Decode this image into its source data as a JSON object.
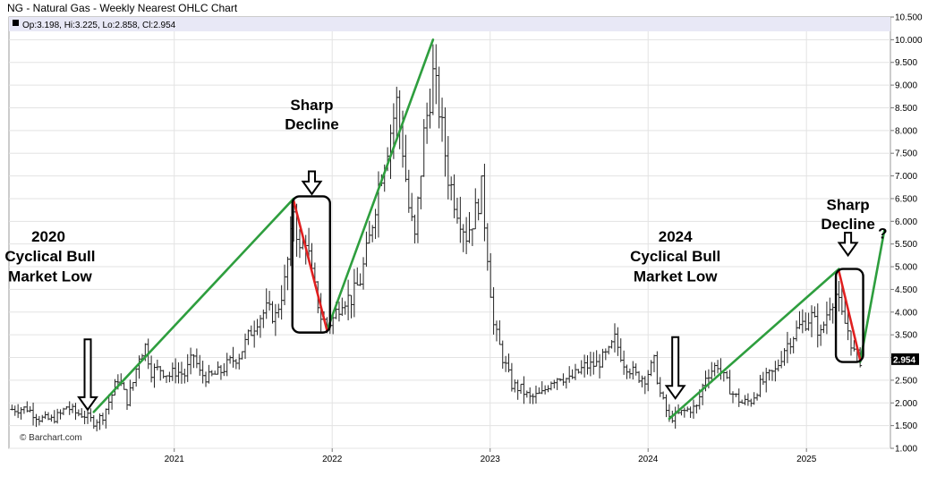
{
  "chart_data": {
    "type": "line",
    "title": "NG - Natural Gas - Weekly Nearest OHLC Chart",
    "ohlc_info": "Op:3.198, Hi:3.225, Lo:2.858, Cl:2.954",
    "last_price": "2.954",
    "watermark": "© Barchart.com",
    "ylim": [
      1.0,
      10.5
    ],
    "y_ticks": [
      "1.000",
      "1.500",
      "2.000",
      "2.500",
      "3.000",
      "3.500",
      "4.000",
      "4.500",
      "5.000",
      "5.500",
      "6.000",
      "6.500",
      "7.000",
      "7.500",
      "8.000",
      "8.500",
      "9.000",
      "9.500",
      "10.000",
      "10.500"
    ],
    "x_ticks": [
      "2021",
      "2022",
      "2023",
      "2024",
      "2025"
    ],
    "grid": true,
    "series": [
      {
        "values": [
          [
            "2019-12-23",
            1.86
          ],
          [
            "2020-01-27",
            1.88
          ],
          [
            "2020-02-24",
            1.66
          ],
          [
            "2020-03-23",
            1.63
          ],
          [
            "2020-04-13",
            1.75
          ],
          [
            "2020-04-27",
            1.92
          ],
          [
            "2020-05-18",
            1.78
          ],
          [
            "2020-06-08",
            1.73
          ],
          [
            "2020-06-29",
            1.58
          ],
          [
            "2020-07-20",
            1.72
          ],
          [
            "2020-08-10",
            2.18
          ],
          [
            "2020-08-24",
            2.55
          ],
          [
            "2020-09-14",
            2.05
          ],
          [
            "2020-09-28",
            2.45
          ],
          [
            "2020-10-12",
            3.05
          ],
          [
            "2020-10-26",
            3.25
          ],
          [
            "2020-11-09",
            2.7
          ],
          [
            "2020-11-30",
            2.75
          ],
          [
            "2020-12-21",
            2.6
          ],
          [
            "2021-01-04",
            2.7
          ],
          [
            "2021-01-25",
            2.62
          ],
          [
            "2021-02-15",
            3.05
          ],
          [
            "2021-03-01",
            2.65
          ],
          [
            "2021-03-22",
            2.55
          ],
          [
            "2021-04-19",
            2.7
          ],
          [
            "2021-05-10",
            2.9
          ],
          [
            "2021-05-31",
            3.05
          ],
          [
            "2021-06-21",
            3.45
          ],
          [
            "2021-07-12",
            3.85
          ],
          [
            "2021-08-02",
            4.05
          ],
          [
            "2021-08-23",
            3.9
          ],
          [
            "2021-09-13",
            4.65
          ],
          [
            "2021-09-27",
            5.6
          ],
          [
            "2021-10-04",
            6.3
          ],
          [
            "2021-10-18",
            5.3
          ],
          [
            "2021-11-01",
            5.65
          ],
          [
            "2021-11-15",
            4.8
          ],
          [
            "2021-12-06",
            3.9
          ],
          [
            "2021-12-20",
            3.7
          ],
          [
            "2022-01-03",
            3.85
          ],
          [
            "2022-01-24",
            4.3
          ],
          [
            "2022-02-14",
            4.3
          ],
          [
            "2022-03-07",
            4.7
          ],
          [
            "2022-03-28",
            5.6
          ],
          [
            "2022-04-18",
            6.8
          ],
          [
            "2022-05-09",
            7.7
          ],
          [
            "2022-05-30",
            8.6
          ],
          [
            "2022-06-13",
            7.6
          ],
          [
            "2022-06-27",
            6.3
          ],
          [
            "2022-07-11",
            5.6
          ],
          [
            "2022-08-01",
            7.9
          ],
          [
            "2022-08-22",
            9.2
          ],
          [
            "2022-09-05",
            8.5
          ],
          [
            "2022-09-26",
            7.0
          ],
          [
            "2022-10-10",
            6.5
          ],
          [
            "2022-11-07",
            5.7
          ],
          [
            "2022-11-28",
            6.2
          ],
          [
            "2022-12-12",
            6.7
          ],
          [
            "2022-12-26",
            5.3
          ],
          [
            "2023-01-09",
            3.7
          ],
          [
            "2023-01-30",
            3.0
          ],
          [
            "2023-02-20",
            2.4
          ],
          [
            "2023-03-13",
            2.3
          ],
          [
            "2023-04-03",
            2.1
          ],
          [
            "2023-05-01",
            2.2
          ],
          [
            "2023-05-22",
            2.5
          ],
          [
            "2023-06-12",
            2.6
          ],
          [
            "2023-07-03",
            2.5
          ],
          [
            "2023-08-07",
            2.8
          ],
          [
            "2023-09-04",
            2.85
          ],
          [
            "2023-10-02",
            3.1
          ],
          [
            "2023-10-16",
            3.4
          ],
          [
            "2023-11-06",
            2.9
          ],
          [
            "2023-12-04",
            2.6
          ],
          [
            "2023-12-25",
            2.55
          ],
          [
            "2024-01-15",
            2.9
          ],
          [
            "2024-01-29",
            2.2
          ],
          [
            "2024-02-19",
            1.65
          ],
          [
            "2024-03-11",
            1.75
          ],
          [
            "2024-04-01",
            1.85
          ],
          [
            "2024-04-22",
            1.9
          ],
          [
            "2024-05-13",
            2.6
          ],
          [
            "2024-06-10",
            2.85
          ],
          [
            "2024-06-24",
            2.55
          ],
          [
            "2024-07-15",
            2.2
          ],
          [
            "2024-08-05",
            2.0
          ],
          [
            "2024-08-26",
            2.05
          ],
          [
            "2024-09-16",
            2.4
          ],
          [
            "2024-10-07",
            2.6
          ],
          [
            "2024-10-21",
            2.7
          ],
          [
            "2024-11-11",
            3.2
          ],
          [
            "2024-12-09",
            3.6
          ],
          [
            "2024-12-23",
            3.75
          ],
          [
            "2025-01-13",
            3.9
          ],
          [
            "2025-02-03",
            3.5
          ],
          [
            "2025-02-24",
            4.2
          ],
          [
            "2025-03-10",
            4.4
          ],
          [
            "2025-03-24",
            3.9
          ],
          [
            "2025-04-07",
            3.6
          ],
          [
            "2025-04-21",
            3.1
          ],
          [
            "2025-05-05",
            2.95
          ]
        ],
        "color": "#000000"
      }
    ],
    "annotations": {
      "trend_lines": [
        {
          "from": [
            "2020-06-29",
            1.8
          ],
          "to": [
            "2021-10-04",
            6.5
          ],
          "color": "#2e9e3e"
        },
        {
          "from": [
            "2021-12-20",
            3.6
          ],
          "to": [
            "2022-08-22",
            10.0
          ],
          "color": "#2e9e3e"
        },
        {
          "from": [
            "2024-02-19",
            1.65
          ],
          "to": [
            "2025-03-17",
            4.95
          ],
          "color": "#2e9e3e"
        },
        {
          "from": [
            "2025-05-05",
            2.9
          ],
          "to": [
            "2025-06-30",
            5.8
          ],
          "color": "#2e9e3e"
        },
        {
          "from": [
            "2021-10-04",
            6.45
          ],
          "to": [
            "2021-12-20",
            3.6
          ],
          "color": "#e02020"
        },
        {
          "from": [
            "2025-03-17",
            4.9
          ],
          "to": [
            "2025-05-05",
            2.95
          ],
          "color": "#e02020"
        }
      ],
      "boxes": [
        {
          "from": [
            "2021-10-01",
            6.55
          ],
          "to": [
            "2021-12-27",
            3.55
          ]
        },
        {
          "from": [
            "2025-03-10",
            4.95
          ],
          "to": [
            "2025-05-12",
            2.9
          ]
        }
      ],
      "arrows": [
        {
          "at": [
            "2020-06-15",
            1.85
          ],
          "length_units": 1.55
        },
        {
          "at": [
            "2021-11-15",
            6.6
          ],
          "length_units": 0.5
        },
        {
          "at": [
            "2024-03-04",
            2.1
          ],
          "length_units": 1.35
        },
        {
          "at": [
            "2025-04-07",
            5.25
          ],
          "length_units": 0.5
        }
      ],
      "labels": [
        {
          "lines": [
            "2020"
          ],
          "at": [
            "2020-03-16",
            5.55
          ],
          "anchor": "middle"
        },
        {
          "lines": [
            "Cyclical Bull"
          ],
          "at": [
            "2020-03-20",
            5.12
          ],
          "anchor": "middle"
        },
        {
          "lines": [
            "Market Low"
          ],
          "at": [
            "2020-03-20",
            4.68
          ],
          "anchor": "middle"
        },
        {
          "lines": [
            "Sharp"
          ],
          "at": [
            "2021-11-15",
            8.45
          ],
          "anchor": "middle"
        },
        {
          "lines": [
            "Decline"
          ],
          "at": [
            "2021-11-15",
            8.03
          ],
          "anchor": "middle"
        },
        {
          "lines": [
            "2024"
          ],
          "at": [
            "2024-03-04",
            5.55
          ],
          "anchor": "middle"
        },
        {
          "lines": [
            "Cyclical Bull"
          ],
          "at": [
            "2024-03-04",
            5.12
          ],
          "anchor": "middle"
        },
        {
          "lines": [
            "Market Low"
          ],
          "at": [
            "2024-03-04",
            4.68
          ],
          "anchor": "middle"
        },
        {
          "lines": [
            "Sharp"
          ],
          "at": [
            "2025-04-07",
            6.25
          ],
          "anchor": "middle"
        },
        {
          "lines": [
            "Decline"
          ],
          "at": [
            "2025-04-07",
            5.83
          ],
          "anchor": "middle"
        },
        {
          "lines": [
            "?"
          ],
          "at": [
            "2025-06-26",
            5.62
          ],
          "anchor": "middle"
        }
      ]
    }
  }
}
